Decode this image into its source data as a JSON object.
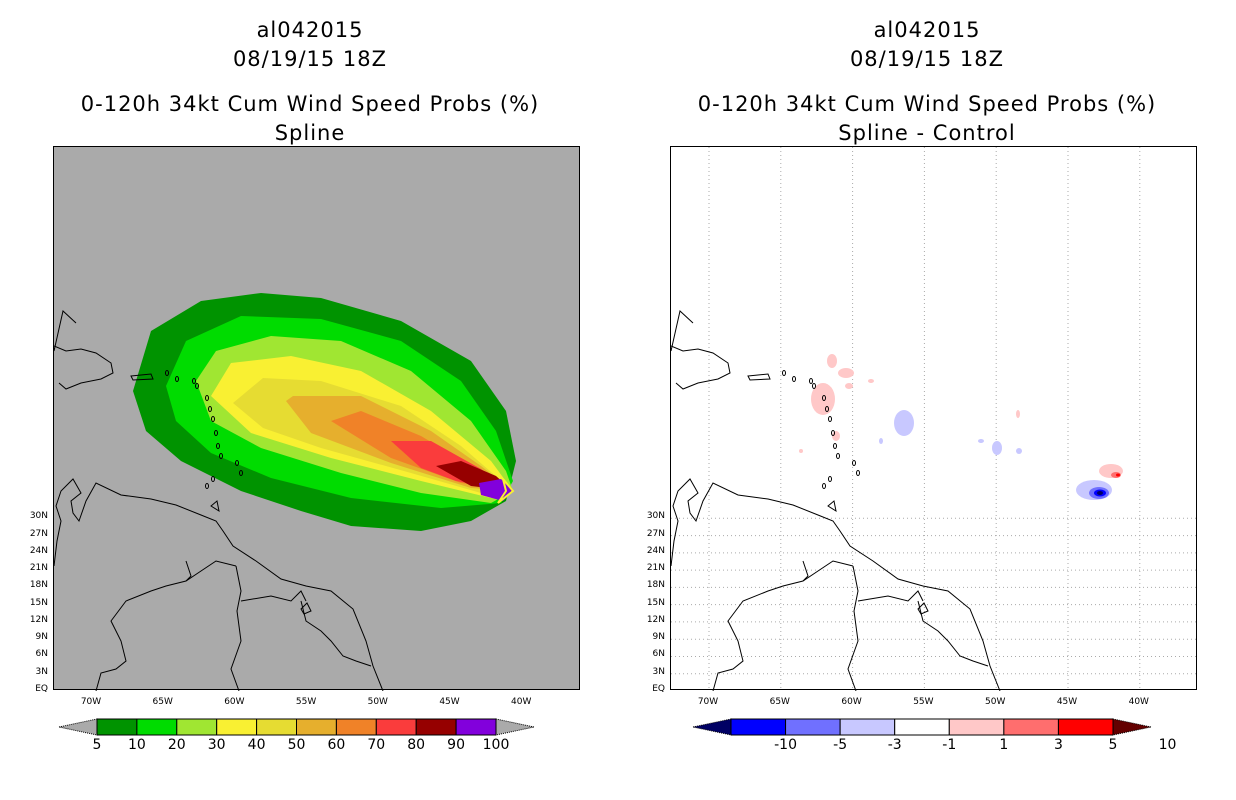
{
  "left": {
    "title_lines": [
      "al042015",
      "08/19/15 18Z",
      "0-120h 34kt Cum Wind Speed Probs (%)",
      "Spline"
    ]
  },
  "right": {
    "title_lines": [
      "al042015",
      "08/19/15 18Z",
      "0-120h 34kt Cum Wind Speed Probs (%)",
      "Spline - Control"
    ]
  },
  "axes": {
    "lat_labels": [
      "EQ",
      "3N",
      "6N",
      "9N",
      "12N",
      "15N",
      "18N",
      "21N",
      "24N",
      "27N",
      "30N"
    ],
    "lon_labels": [
      "70W",
      "65W",
      "60W",
      "55W",
      "50W",
      "45W",
      "40W"
    ]
  },
  "left_colorbar": {
    "labels": [
      "5",
      "10",
      "20",
      "30",
      "40",
      "50",
      "60",
      "70",
      "80",
      "90",
      "100"
    ],
    "colors": [
      "#009300",
      "#00dc00",
      "#a0e632",
      "#f9f032",
      "#e6dc32",
      "#e6af2d",
      "#f08228",
      "#fa3c3c",
      "#960000",
      "#8200dc"
    ],
    "end_color": "#aaaaaa"
  },
  "right_colorbar": {
    "labels": [
      "-10",
      "-5",
      "-3",
      "-1",
      "1",
      "3",
      "5",
      "10"
    ],
    "colors": [
      "#000064",
      "#0000ff",
      "#7070ff",
      "#c8c8ff",
      "#ffffff",
      "#ffc8c8",
      "#ff6e6e",
      "#ff0000",
      "#640000"
    ]
  },
  "chart_data": [
    {
      "type": "heatmap",
      "title": "0-120h 34kt Cum Wind Speed Probs (%) - Spline",
      "storm": "al042015",
      "time": "08/19/15 18Z",
      "xlim": [
        "72.6W",
        "35.9W"
      ],
      "ylim": [
        "EQ",
        "31.5N"
      ],
      "contour_levels": [
        5,
        10,
        20,
        30,
        40,
        50,
        60,
        70,
        80,
        90,
        100
      ],
      "swath_extent": {
        "lon_range": [
          "64W",
          "40.5W"
        ],
        "lat_range": [
          "9N",
          "23N"
        ],
        "max_near": [
          "41W",
          "12N"
        ]
      }
    },
    {
      "type": "heatmap",
      "title": "0-120h 34kt Cum Wind Speed Probs (%) - Spline - Control",
      "contour_levels": [
        -10,
        -5,
        -3,
        -1,
        1,
        3,
        5,
        10
      ],
      "features": [
        "negative max near 42.5W 11.5N (< -5)",
        "positive near 41.5W 12.5N (5-10)",
        "small +1 to +3 patches near 61-62W 16-18N",
        "small -1 to -3 patches near 56W 15N and 49W 14N"
      ]
    }
  ]
}
